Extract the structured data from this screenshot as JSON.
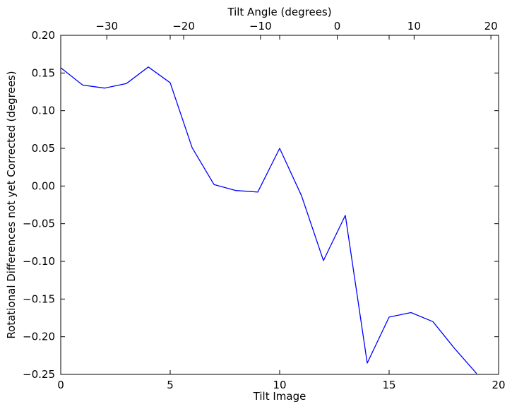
{
  "chart_data": {
    "type": "line",
    "xlabel": "Tilt Image",
    "ylabel": "Rotational Differences not yet Corrected (degrees)",
    "x2label": "Tilt Angle (degrees)",
    "xlim": [
      0,
      20
    ],
    "ylim": [
      -0.25,
      0.2
    ],
    "x2lim": [
      -36,
      21
    ],
    "xticks": [
      0,
      5,
      10,
      15,
      20
    ],
    "xtick_labels": [
      "0",
      "5",
      "10",
      "15",
      "20"
    ],
    "x2ticks": [
      -30,
      -20,
      -10,
      0,
      10,
      20
    ],
    "x2tick_labels": [
      "−30",
      "−20",
      "−10",
      "0",
      "10",
      "20"
    ],
    "yticks": [
      0.2,
      0.15,
      0.1,
      0.05,
      0.0,
      -0.05,
      -0.1,
      -0.15,
      -0.2,
      -0.25
    ],
    "ytick_labels": [
      "0.20",
      "0.15",
      "0.10",
      "0.05",
      "0.00",
      "−0.05",
      "−0.10",
      "−0.15",
      "−0.20",
      "−0.25"
    ],
    "grid": false,
    "series": [
      {
        "color": "#0000ff",
        "x": [
          0,
          1,
          2,
          3,
          4,
          5,
          6,
          7,
          8,
          9,
          10,
          11,
          12,
          13,
          14,
          15,
          16,
          17,
          18,
          19
        ],
        "y": [
          0.157,
          0.134,
          0.13,
          0.136,
          0.158,
          0.137,
          0.051,
          0.002,
          -0.006,
          -0.008,
          0.05,
          -0.013,
          -0.099,
          -0.039,
          -0.235,
          -0.174,
          -0.168,
          -0.18,
          -0.216,
          -0.249
        ]
      }
    ]
  }
}
